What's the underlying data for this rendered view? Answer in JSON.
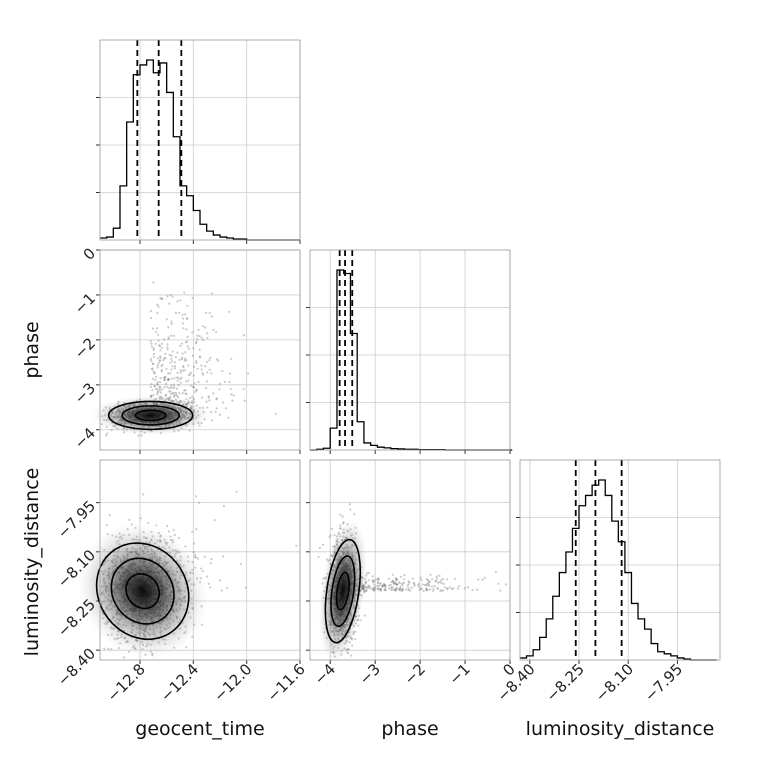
{
  "chart_data": {
    "type": "corner",
    "parameters": [
      "geocent_time",
      "phase",
      "luminosity_distance"
    ],
    "grid": true,
    "ranges": {
      "geocent_time": [
        -13.1,
        -11.6
      ],
      "phase": [
        -4.45,
        0
      ],
      "luminosity_distance": [
        -8.43,
        -7.82
      ]
    },
    "ticks": {
      "geocent_time": [
        "−12.8",
        "−12.4",
        "−12.0",
        "−11.6"
      ],
      "phase": [
        "−4",
        "−3",
        "−2",
        "−1",
        "0"
      ],
      "luminosity_distance": [
        "−8.40",
        "−8.25",
        "−8.10",
        "−7.95"
      ]
    },
    "tick_values": {
      "geocent_time": [
        -12.8,
        -12.4,
        -12.0,
        -11.6
      ],
      "phase": [
        -4,
        -3,
        -2,
        -1,
        0
      ],
      "luminosity_distance": [
        -8.4,
        -8.25,
        -8.1,
        -7.95
      ]
    },
    "quantiles": {
      "geocent_time": [
        -12.82,
        -12.66,
        -12.49
      ],
      "phase": [
        -3.79,
        -3.67,
        -3.51
      ],
      "luminosity_distance": [
        -8.26,
        -8.2,
        -8.12
      ]
    },
    "histograms": {
      "geocent_time": {
        "bin_edges": [
          -13.1,
          -13.05,
          -13.0,
          -12.95,
          -12.9,
          -12.85,
          -12.8,
          -12.75,
          -12.7,
          -12.65,
          -12.6,
          -12.55,
          -12.5,
          -12.45,
          -12.4,
          -12.35,
          -12.3,
          -12.25,
          -12.2,
          -12.15,
          -12.1,
          -12.05,
          -12.0,
          -11.95,
          -11.9,
          -11.85,
          -11.8,
          -11.75,
          -11.7,
          -11.65,
          -11.6
        ],
        "counts": [
          2,
          3,
          12,
          55,
          120,
          168,
          178,
          183,
          170,
          180,
          150,
          105,
          55,
          45,
          30,
          16,
          9,
          5,
          3,
          2,
          1,
          1,
          0,
          0,
          0,
          0,
          0,
          0,
          0,
          0
        ]
      },
      "phase": {
        "bin_edges": [
          -4.45,
          -4.3,
          -4.15,
          -4.0,
          -3.85,
          -3.7,
          -3.55,
          -3.4,
          -3.25,
          -3.1,
          -2.95,
          -2.8,
          -2.65,
          -2.5,
          -2.35,
          -2.2,
          -2.05,
          -1.9,
          -1.75,
          -1.6,
          -1.45,
          -1.3,
          -1.15,
          -1.0,
          -0.85,
          -0.7,
          -0.55,
          -0.4,
          -0.25,
          -0.1,
          0.05
        ],
        "counts": [
          0,
          2,
          5,
          62,
          510,
          500,
          330,
          80,
          20,
          13,
          8,
          6,
          4,
          3,
          2,
          2,
          1,
          1,
          1,
          1,
          0,
          0,
          0,
          0,
          0,
          0,
          0,
          0,
          0,
          0
        ]
      },
      "luminosity_distance": {
        "bin_edges": [
          -8.43,
          -8.41,
          -8.39,
          -8.37,
          -8.35,
          -8.33,
          -8.31,
          -8.29,
          -8.27,
          -8.25,
          -8.23,
          -8.21,
          -8.19,
          -8.17,
          -8.15,
          -8.13,
          -8.11,
          -8.09,
          -8.07,
          -8.05,
          -8.03,
          -8.01,
          -7.99,
          -7.97,
          -7.95,
          -7.93,
          -7.91,
          -7.89,
          -7.87,
          -7.85,
          -7.83
        ],
        "counts": [
          2,
          4,
          10,
          22,
          40,
          62,
          85,
          105,
          128,
          150,
          160,
          170,
          175,
          160,
          135,
          115,
          85,
          55,
          40,
          30,
          16,
          8,
          6,
          4,
          2,
          1,
          0,
          0,
          0,
          0
        ]
      }
    },
    "density_2d": {
      "geocent_time_vs_phase": {
        "peak": [
          -12.72,
          -3.68
        ]
      },
      "geocent_time_vs_luminosity_distance": {
        "peak": [
          -12.78,
          -8.22
        ]
      },
      "phase_vs_luminosity_distance": {
        "peak": [
          -3.72,
          -8.22
        ]
      }
    }
  }
}
